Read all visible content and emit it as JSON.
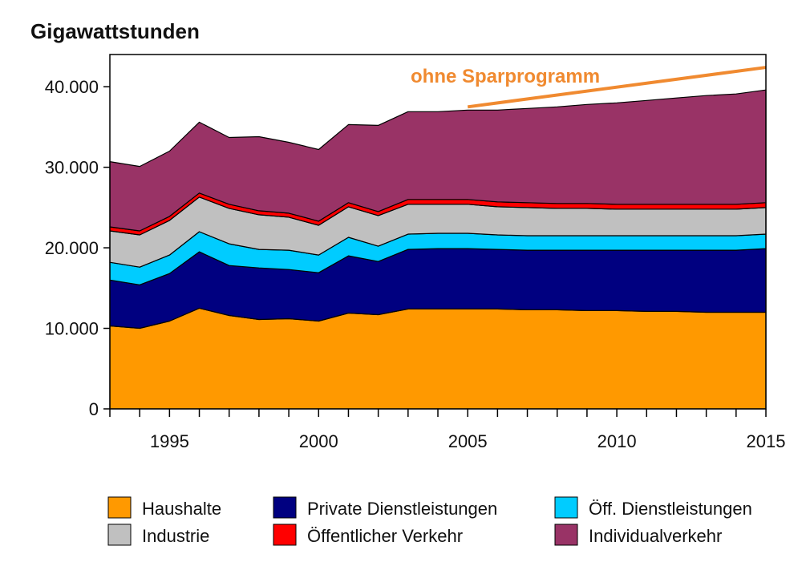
{
  "chart_data": {
    "type": "area",
    "stacked": true,
    "title": "Gigawattstunden",
    "x": [
      1993,
      1994,
      1995,
      1996,
      1997,
      1998,
      1999,
      2000,
      2001,
      2002,
      2003,
      2004,
      2005,
      2006,
      2007,
      2008,
      2009,
      2010,
      2011,
      2012,
      2013,
      2014,
      2015
    ],
    "x_ticks": [
      "1995",
      "2000",
      "2005",
      "2010",
      "2015"
    ],
    "x_tick_values": [
      1995,
      2000,
      2005,
      2010,
      2015
    ],
    "y_ticks": [
      "0",
      "10.000",
      "20.000",
      "30.000",
      "40.000"
    ],
    "y_tick_values": [
      0,
      10000,
      20000,
      30000,
      40000
    ],
    "ylim": [
      0,
      44000
    ],
    "xlim": [
      1993,
      2015
    ],
    "grid": false,
    "legend_position": "bottom",
    "series": [
      {
        "name": "Haushalte",
        "color": "#FF9900",
        "values": [
          10300,
          10000,
          10900,
          12500,
          11600,
          11100,
          11200,
          10900,
          11900,
          11700,
          12400,
          12400,
          12400,
          12400,
          12300,
          12300,
          12200,
          12200,
          12100,
          12100,
          12000,
          12000,
          12000
        ]
      },
      {
        "name": "Private Dienstleistungen",
        "color": "#000080",
        "values": [
          5700,
          5400,
          5900,
          7000,
          6200,
          6400,
          6100,
          6000,
          7100,
          6600,
          7400,
          7500,
          7500,
          7400,
          7400,
          7400,
          7500,
          7500,
          7600,
          7600,
          7700,
          7700,
          7900
        ]
      },
      {
        "name": "Öff. Dienstleistungen",
        "color": "#00CCFF",
        "values": [
          2200,
          2200,
          2300,
          2500,
          2700,
          2300,
          2400,
          2200,
          2300,
          1900,
          1900,
          1900,
          1900,
          1800,
          1800,
          1800,
          1800,
          1800,
          1800,
          1800,
          1800,
          1800,
          1800
        ]
      },
      {
        "name": "Industrie",
        "color": "#C0C0C0",
        "values": [
          3900,
          4000,
          4300,
          4300,
          4400,
          4300,
          4100,
          3700,
          3800,
          3800,
          3700,
          3600,
          3600,
          3500,
          3500,
          3400,
          3400,
          3300,
          3300,
          3300,
          3300,
          3300,
          3300
        ]
      },
      {
        "name": "Öffentlicher Verkehr",
        "color": "#FF0000",
        "values": [
          500,
          500,
          500,
          500,
          500,
          500,
          500,
          500,
          500,
          500,
          600,
          600,
          600,
          600,
          600,
          600,
          600,
          600,
          600,
          600,
          600,
          600,
          600
        ]
      },
      {
        "name": "Individualverkehr",
        "color": "#993366",
        "values": [
          8100,
          8000,
          8100,
          8800,
          8300,
          9200,
          8800,
          8900,
          9700,
          10700,
          10900,
          10900,
          11100,
          11400,
          11700,
          12000,
          12300,
          12600,
          12900,
          13200,
          13500,
          13700,
          14000
        ]
      }
    ],
    "annotation": {
      "text": "ohne Sparprogramm",
      "color": "#F08A30",
      "line_x": [
        2005,
        2015
      ],
      "line_y": [
        37500,
        42400
      ]
    }
  }
}
